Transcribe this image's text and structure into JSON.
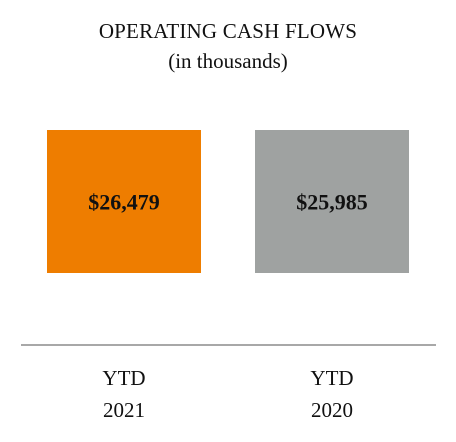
{
  "chart_data": {
    "type": "bar",
    "title": "OPERATING CASH FLOWS",
    "subtitle": "(in thousands)",
    "categories": [
      [
        "YTD",
        "2021"
      ],
      [
        "YTD",
        "2020"
      ]
    ],
    "values": [
      26479,
      25985
    ],
    "value_labels": [
      "$26,479",
      "$25,985"
    ],
    "bar_colors": [
      "#ee7d00",
      "#9fa2a1"
    ],
    "axis_color": "#8c8c8c",
    "grid": false,
    "legend": "none"
  }
}
